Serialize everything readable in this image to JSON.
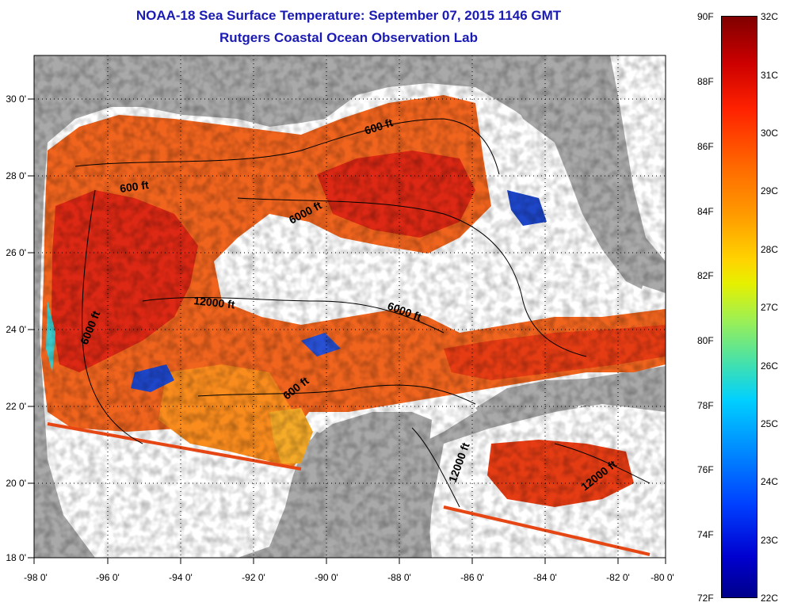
{
  "header": {
    "title": "NOAA-18 Sea Surface Temperature:  September 07, 2015 1146 GMT",
    "subtitle": "Rutgers Coastal Ocean Observation Lab"
  },
  "map": {
    "lon_labels": [
      "-98 0'",
      "-96 0'",
      "-94 0'",
      "-92 0'",
      "-90 0'",
      "-88 0'",
      "-86 0'",
      "-84 0'",
      "-82 0'",
      "-80 0'"
    ],
    "lat_labels": [
      "30 0'",
      "28 0'",
      "26 0'",
      "24 0'",
      "22 0'",
      "20 0'",
      "18 0'"
    ],
    "lon_range": [
      -98,
      -80
    ],
    "lat_range": [
      18,
      31
    ],
    "contour_labels": [
      "600 ft",
      "600 ft",
      "6000 ft",
      "12000 ft",
      "6000 ft",
      "6000 ft",
      "600 ft",
      "12000 ft",
      "12000 ft"
    ],
    "colors": {
      "land": "#a9a9a9",
      "no_data": "#ffffff",
      "warm": "#f05a14",
      "hot": "#dc2814",
      "cool": "#1e46c8"
    }
  },
  "colorbar": {
    "f_labels": [
      "90F",
      "88F",
      "86F",
      "84F",
      "82F",
      "80F",
      "78F",
      "76F",
      "74F",
      "72F"
    ],
    "c_labels": [
      "32C",
      "31C",
      "30C",
      "29C",
      "28C",
      "27C",
      "26C",
      "25C",
      "24C",
      "23C",
      "22C"
    ],
    "range_f": [
      72,
      90
    ],
    "range_c": [
      22,
      32
    ]
  }
}
